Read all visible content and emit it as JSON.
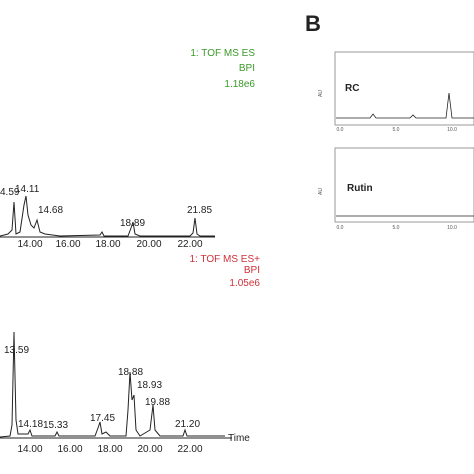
{
  "panel_a_top": {
    "header": [
      "1: TOF MS ES",
      "BPI",
      "1.18e6"
    ],
    "peaks": [
      "4.59",
      "14.11",
      "14.68",
      "18.89",
      "21.85"
    ],
    "x_ticks": [
      "14.00",
      "16.00",
      "18.00",
      "20.00",
      "22.00"
    ]
  },
  "panel_a_bottom": {
    "header": [
      "1: TOF MS ES+",
      "BPI",
      "1.05e6"
    ],
    "peaks": [
      "13.59",
      "18.88",
      "18.93",
      "17.45",
      "19.88",
      "14.18",
      "15.33",
      "21.20"
    ],
    "x_ticks": [
      "14.00",
      "16.00",
      "18.00",
      "20.00",
      "22.00"
    ],
    "x_label": "Time"
  },
  "panel_b": {
    "label": "B",
    "top": {
      "title": "RC",
      "y_unit": "AU"
    },
    "bottom": {
      "title": "Rutin",
      "y_unit": "AU"
    },
    "x_ticks": [
      "0.0",
      "5.0",
      "10.0"
    ]
  }
}
